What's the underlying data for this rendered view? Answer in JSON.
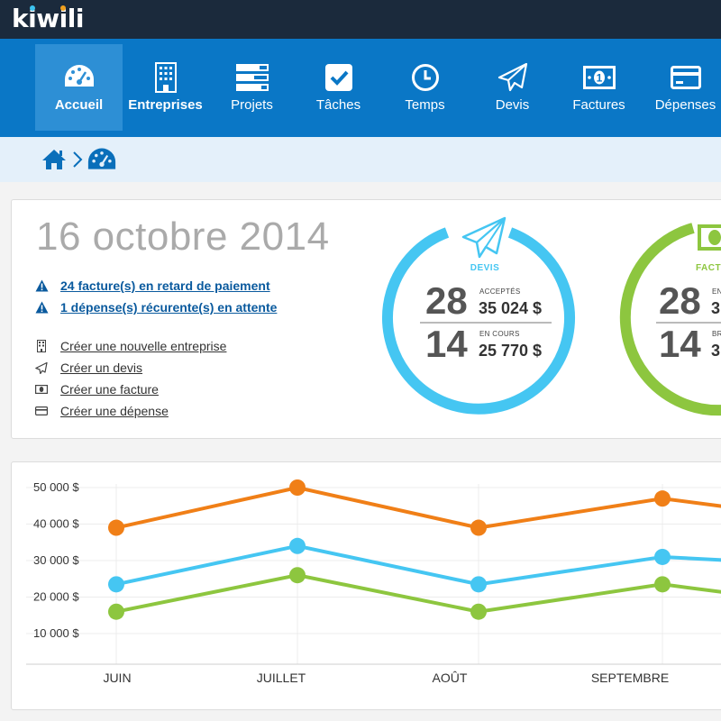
{
  "brand": {
    "name_parts": [
      "k",
      "i",
      "w",
      "i",
      "l",
      "i"
    ],
    "dot_colors": [
      "#3cc3f0",
      "#f0a01e"
    ]
  },
  "nav": {
    "items": [
      {
        "label": "Accueil",
        "icon": "gauge-icon",
        "active": true,
        "bold": true
      },
      {
        "label": "Entreprises",
        "icon": "building-icon",
        "active": false,
        "bold": true
      },
      {
        "label": "Projets",
        "icon": "projects-icon",
        "active": false,
        "bold": false
      },
      {
        "label": "Tâches",
        "icon": "checkbox-icon",
        "active": false,
        "bold": false
      },
      {
        "label": "Temps",
        "icon": "clock-icon",
        "active": false,
        "bold": false
      },
      {
        "label": "Devis",
        "icon": "paper-plane-icon",
        "active": false,
        "bold": false
      },
      {
        "label": "Factures",
        "icon": "banknote-icon",
        "active": false,
        "bold": false
      },
      {
        "label": "Dépenses",
        "icon": "credit-card-icon",
        "active": false,
        "bold": false
      }
    ]
  },
  "breadcrumb": {
    "items": [
      "home-icon",
      "gauge-icon"
    ]
  },
  "summary": {
    "date": "16 octobre 2014",
    "alerts": [
      "24 facture(s) en retard de paiement",
      "1 dépense(s) récurente(s) en attente"
    ],
    "actions": [
      {
        "label": "Créer une nouvelle entreprise",
        "icon": "building-icon"
      },
      {
        "label": "Créer un devis",
        "icon": "paper-plane-icon"
      },
      {
        "label": "Créer une facture",
        "icon": "banknote-icon"
      },
      {
        "label": "Créer une dépense",
        "icon": "credit-card-icon"
      }
    ]
  },
  "widgets": {
    "devis": {
      "title": "DEVIS",
      "color": "#45c6f2",
      "accepted_count": "28",
      "accepted_label": "ACCEPTÉS",
      "accepted_amount": "35 024 $",
      "pending_count": "14",
      "pending_label": "EN COURS",
      "pending_amount": "25 770 $"
    },
    "factures": {
      "title": "FACT",
      "color": "#8dc63f",
      "count1": "28",
      "label1": "EN",
      "amount1": "3",
      "count2": "14",
      "label2": "BR",
      "amount2": "3"
    }
  },
  "chart_data": {
    "type": "line",
    "categories": [
      "JUIN",
      "JUILLET",
      "AOÛT",
      "SEPTEMBRE"
    ],
    "y_ticks": [
      "50 000 $",
      "40 000 $",
      "30 000 $",
      "20 000 $",
      "10 000 $"
    ],
    "ylim": [
      0,
      50000
    ],
    "grid": true,
    "series": [
      {
        "color": "#f07f17",
        "values": [
          39000,
          50000,
          39000,
          47000
        ]
      },
      {
        "color": "#45c6f2",
        "values": [
          23500,
          34000,
          23500,
          31000
        ]
      },
      {
        "color": "#8dc63f",
        "values": [
          16000,
          26000,
          16000,
          23500
        ]
      }
    ]
  }
}
